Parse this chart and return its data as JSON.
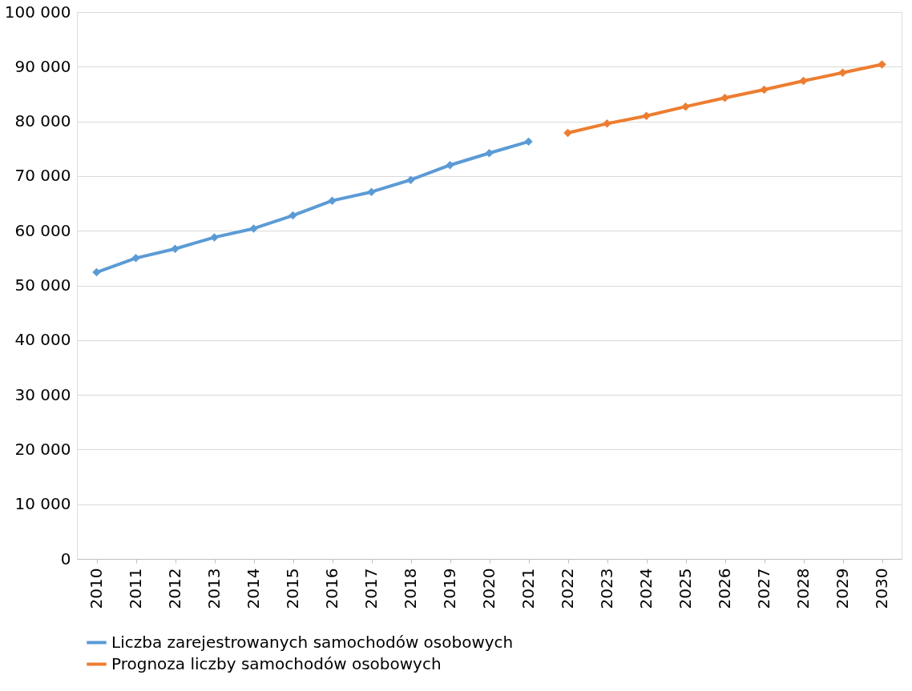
{
  "chart_data": {
    "type": "line",
    "categories": [
      "2010",
      "2011",
      "2012",
      "2013",
      "2014",
      "2015",
      "2016",
      "2017",
      "2018",
      "2019",
      "2020",
      "2021",
      "2022",
      "2023",
      "2024",
      "2025",
      "2026",
      "2027",
      "2028",
      "2029",
      "2030"
    ],
    "series": [
      {
        "name": "Liczba zarejestrowanych samochodów osobowych",
        "color": "#5b9bd5",
        "values": [
          52400,
          55000,
          56700,
          58800,
          60400,
          62800,
          65500,
          67100,
          69300,
          72000,
          74200,
          76300,
          null,
          null,
          null,
          null,
          null,
          null,
          null,
          null,
          null
        ]
      },
      {
        "name": "Prognoza liczby samochodów osobowych",
        "color": "#ed7d31",
        "values": [
          null,
          null,
          null,
          null,
          null,
          null,
          null,
          null,
          null,
          null,
          null,
          null,
          77900,
          79600,
          81000,
          82700,
          84300,
          85800,
          87400,
          88900,
          90400
        ]
      }
    ],
    "ylim": [
      0,
      100000
    ],
    "yticks": [
      0,
      {
        "value": 10000,
        "label": "10 000"
      },
      {
        "value": 20000,
        "label": "20 000"
      },
      {
        "value": 30000,
        "label": "30 000"
      },
      {
        "value": 40000,
        "label": "40 000"
      },
      {
        "value": 50000,
        "label": "50 000"
      },
      {
        "value": 60000,
        "label": "60 000"
      },
      {
        "value": 70000,
        "label": "70 000"
      },
      {
        "value": 80000,
        "label": "80 000"
      },
      {
        "value": 90000,
        "label": "90 000"
      },
      {
        "value": 100000,
        "label": "100 000"
      }
    ],
    "grid": "y",
    "legend": "bottom",
    "marker": "diamond",
    "line_style": "solid"
  }
}
